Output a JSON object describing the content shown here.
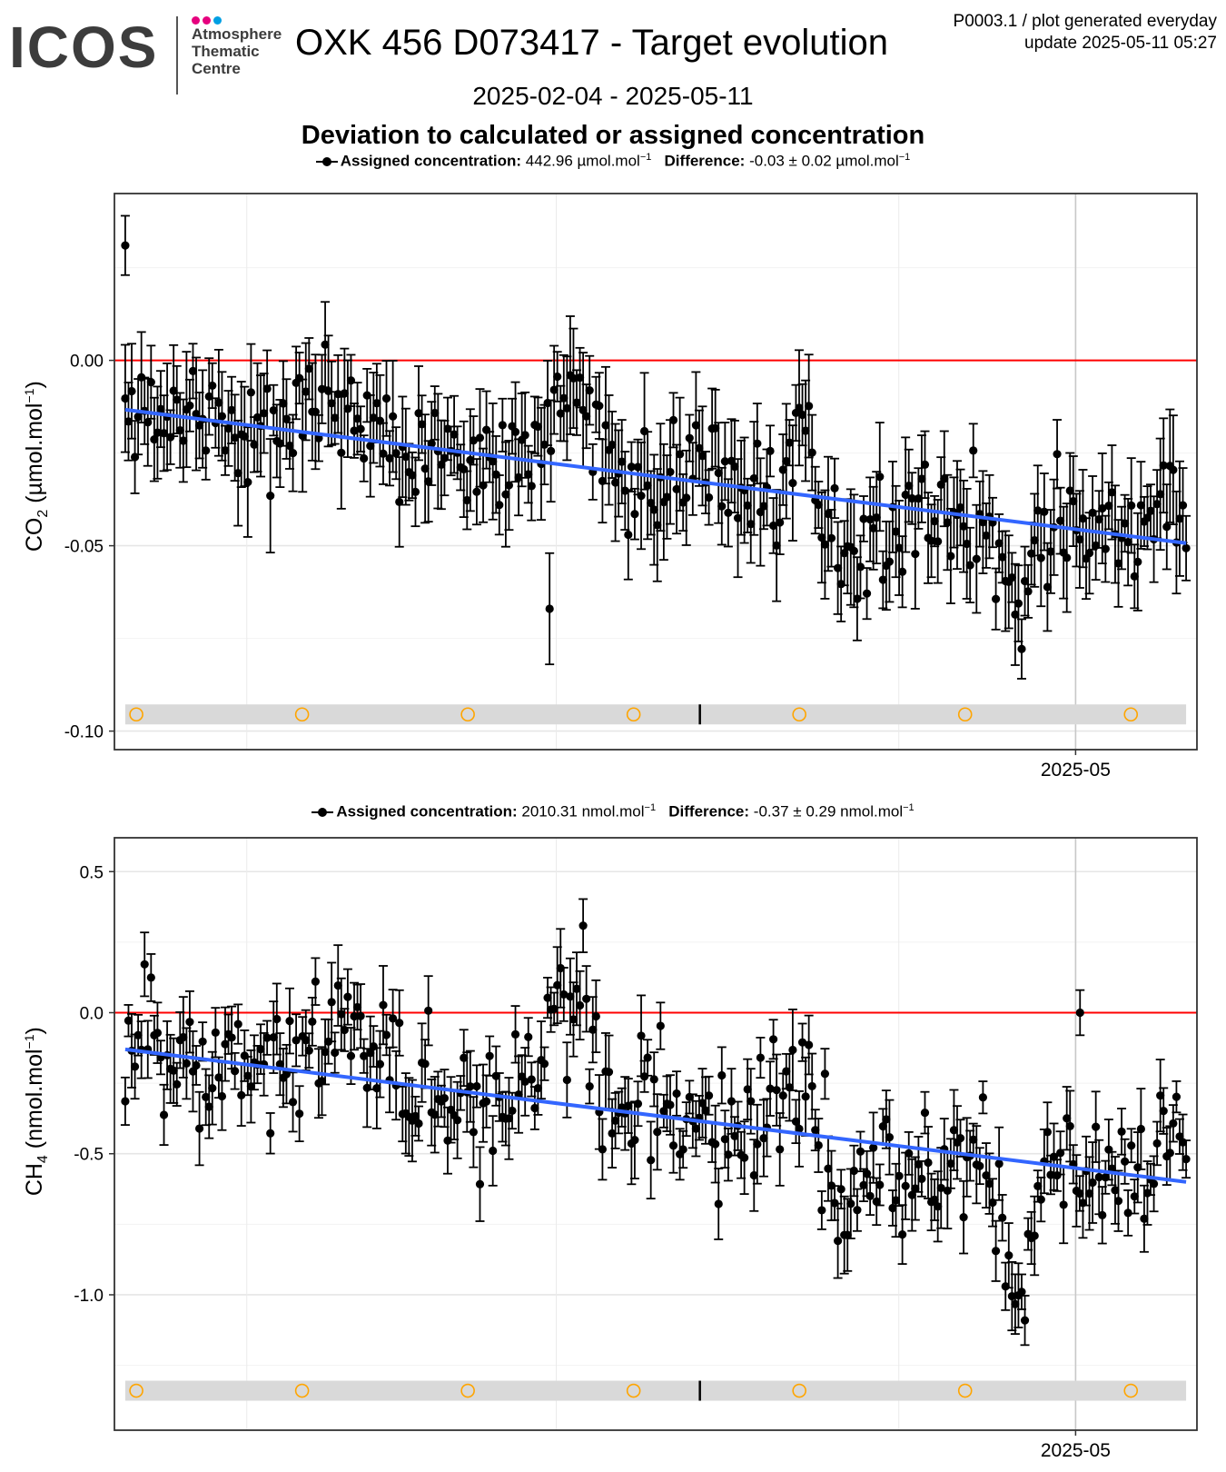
{
  "header": {
    "logo_text": "ICOS",
    "logo_subtitle_lines": [
      "Atmosphere",
      "Thematic",
      "Centre"
    ],
    "logo_dot_colors": [
      "#e6007e",
      "#e6007e",
      "#009fe3"
    ],
    "title": "OXK 456 D073417 - Target evolution",
    "meta_line1": "P0003.1 / plot generated everyday",
    "meta_line2": "update  2025-05-11 05:27",
    "date_range": "2025-02-04 - 2025-05-11",
    "subtitle": "Deviation to calculated or assigned concentration"
  },
  "colors": {
    "points": "#000000",
    "trend": "#3366ff",
    "zero_line": "#ff0000",
    "band": "#d9d9d9",
    "marker_circle": "#ffa500"
  },
  "chart_data": [
    {
      "type": "scatter",
      "ylabel_species": "CO",
      "ylabel_sub": "2",
      "ylabel_unit": "(µmol.mol",
      "legend": {
        "label": "Assigned concentration:",
        "assigned": "442.96 µmol.mol",
        "diff_label": "Difference:",
        "diff": "-0.03 ± 0.02 µmol.mol"
      },
      "ylim": [
        -0.105,
        0.045
      ],
      "yticks": [
        0.0,
        -0.05,
        -0.1
      ],
      "ytick_labels": [
        "0.00",
        "-0.05",
        "-0.10"
      ],
      "x_tick_label": "2025-05",
      "trend": {
        "start": -0.0133,
        "end": -0.0493
      },
      "reference_line": 0,
      "band_y": -0.0955,
      "seed": 11,
      "noise": 0.0105,
      "err": 0.011,
      "outliers": [
        [
          0,
          0.031,
          0.008
        ],
        [
          0.4,
          -0.067,
          0.015
        ]
      ],
      "dips": [
        [
          0.69,
          0.04,
          -0.015
        ],
        [
          0.84,
          0.02,
          -0.025
        ]
      ],
      "bumps": [
        [
          0.2,
          0.04,
          0.012
        ],
        [
          0.42,
          0.03,
          0.018
        ],
        [
          0.64,
          0.015,
          0.02
        ],
        [
          0.99,
          0.03,
          0.012
        ]
      ]
    },
    {
      "type": "scatter",
      "ylabel_species": "CH",
      "ylabel_sub": "4",
      "ylabel_unit": "(nmol.mol",
      "legend": {
        "label": "Assigned concentration:",
        "assigned": "2010.31 nmol.mol",
        "diff_label": "Difference:",
        "diff": "-0.37 ± 0.29 nmol.mol"
      },
      "ylim": [
        -1.48,
        0.62
      ],
      "yticks": [
        0.5,
        0.0,
        -0.5,
        -1.0
      ],
      "ytick_labels": [
        "0.5",
        "0.0",
        "-0.5",
        "-1.0"
      ],
      "x_tick_label": "2025-05",
      "trend": {
        "start": -0.13,
        "end": -0.6
      },
      "reference_line": 0,
      "band_y": -1.34,
      "seed": 23,
      "noise": 0.17,
      "err": 0.1,
      "outliers": [
        [
          0.9,
          0.0,
          0.08
        ]
      ],
      "dips": [
        [
          0.69,
          0.04,
          -0.25
        ],
        [
          0.84,
          0.02,
          -0.35
        ]
      ],
      "bumps": [
        [
          0.2,
          0.04,
          0.2
        ],
        [
          0.42,
          0.03,
          0.35
        ],
        [
          0.64,
          0.015,
          0.3
        ],
        [
          0.99,
          0.03,
          0.25
        ]
      ]
    }
  ],
  "x_axis": {
    "date_start": "2025-02-04",
    "date_end": "2025-05-11",
    "tick_label": "2025-05",
    "tick_date": "2025-05-01",
    "minor_dates": [
      "2025-02-15",
      "2025-03-15",
      "2025-04-15"
    ],
    "marker_dates": [
      "2025-02-05",
      "2025-02-20",
      "2025-03-07",
      "2025-03-22",
      "2025-04-06",
      "2025-04-21",
      "2025-05-06"
    ],
    "tick_mark_date": "2025-03-28"
  }
}
